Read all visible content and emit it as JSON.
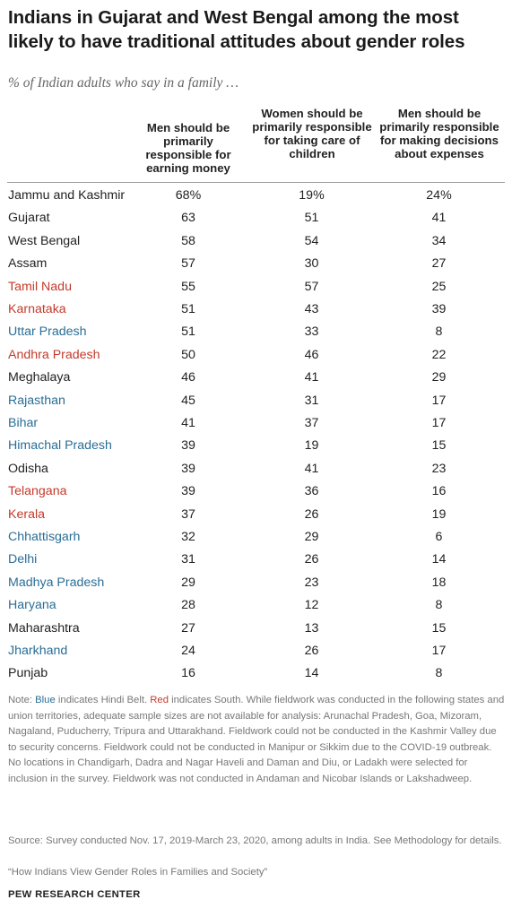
{
  "title": "Indians in Gujarat and West Bengal among the most likely to have traditional attitudes about gender roles",
  "subtitle": "% of Indian adults who say in a family …",
  "colors": {
    "hindi_belt": "#2a6e96",
    "south": "#c43a2b",
    "other": "#222222"
  },
  "chart_data": {
    "type": "table",
    "columns": [
      "Men should be primarily responsible for earning money",
      "Women should be primarily responsible for taking care of children",
      "Men should be primarily responsible for making decisions about expenses"
    ],
    "rows": [
      {
        "state": "Jammu and Kashmir",
        "region": "none",
        "v1": "68%",
        "v2": "19%",
        "v3": "24%"
      },
      {
        "state": "Gujarat",
        "region": "none",
        "v1": "63",
        "v2": "51",
        "v3": "41"
      },
      {
        "state": "West Bengal",
        "region": "none",
        "v1": "58",
        "v2": "54",
        "v3": "34"
      },
      {
        "state": "Assam",
        "region": "none",
        "v1": "57",
        "v2": "30",
        "v3": "27"
      },
      {
        "state": "Tamil Nadu",
        "region": "red",
        "v1": "55",
        "v2": "57",
        "v3": "25"
      },
      {
        "state": "Karnataka",
        "region": "red",
        "v1": "51",
        "v2": "43",
        "v3": "39"
      },
      {
        "state": "Uttar Pradesh",
        "region": "blue",
        "v1": "51",
        "v2": "33",
        "v3": "8"
      },
      {
        "state": "Andhra Pradesh",
        "region": "red",
        "v1": "50",
        "v2": "46",
        "v3": "22"
      },
      {
        "state": "Meghalaya",
        "region": "none",
        "v1": "46",
        "v2": "41",
        "v3": "29"
      },
      {
        "state": "Rajasthan",
        "region": "blue",
        "v1": "45",
        "v2": "31",
        "v3": "17"
      },
      {
        "state": "Bihar",
        "region": "blue",
        "v1": "41",
        "v2": "37",
        "v3": "17"
      },
      {
        "state": "Himachal Pradesh",
        "region": "blue",
        "v1": "39",
        "v2": "19",
        "v3": "15"
      },
      {
        "state": "Odisha",
        "region": "none",
        "v1": "39",
        "v2": "41",
        "v3": "23"
      },
      {
        "state": "Telangana",
        "region": "red",
        "v1": "39",
        "v2": "36",
        "v3": "16"
      },
      {
        "state": "Kerala",
        "region": "red",
        "v1": "37",
        "v2": "26",
        "v3": "19"
      },
      {
        "state": "Chhattisgarh",
        "region": "blue",
        "v1": "32",
        "v2": "29",
        "v3": "6"
      },
      {
        "state": "Delhi",
        "region": "blue",
        "v1": "31",
        "v2": "26",
        "v3": "14"
      },
      {
        "state": "Madhya Pradesh",
        "region": "blue",
        "v1": "29",
        "v2": "23",
        "v3": "18"
      },
      {
        "state": "Haryana",
        "region": "blue",
        "v1": "28",
        "v2": "12",
        "v3": "8"
      },
      {
        "state": "Maharashtra",
        "region": "none",
        "v1": "27",
        "v2": "13",
        "v3": "15"
      },
      {
        "state": "Jharkhand",
        "region": "blue",
        "v1": "24",
        "v2": "26",
        "v3": "17"
      },
      {
        "state": "Punjab",
        "region": "none",
        "v1": "16",
        "v2": "14",
        "v3": "8"
      }
    ]
  },
  "note": {
    "prefix": "Note: ",
    "blue_word": "Blue",
    "mid1": " indicates Hindi Belt. ",
    "red_word": "Red",
    "rest": " indicates South. While fieldwork was conducted in the following states and union territories, adequate sample sizes are not available for analysis: Arunachal Pradesh, Goa, Mizoram, Nagaland, Puducherry, Tripura and Uttarakhand. Fieldwork could not be conducted in the Kashmir Valley due to security concerns. Fieldwork could not be conducted in Manipur or Sikkim due to the COVID-19 outbreak. No locations in Chandigarh, Dadra and Nagar Haveli and Daman and Diu, or Ladakh were selected for inclusion in the survey. Fieldwork was not conducted in Andaman and Nicobar Islands or Lakshadweep."
  },
  "source": "Source: Survey conducted Nov. 17, 2019-March 23, 2020, among adults in India. See Methodology for details.",
  "report": "“How Indians View Gender Roles in Families and Society”",
  "brand": "PEW RESEARCH CENTER"
}
